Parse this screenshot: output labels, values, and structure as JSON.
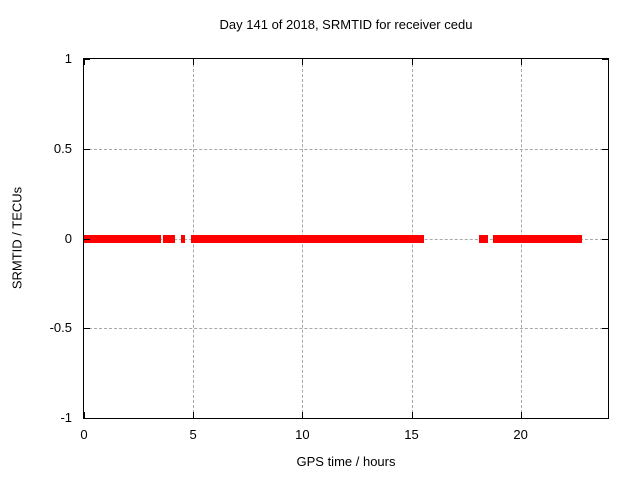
{
  "chart_data": {
    "type": "line",
    "title": "Day 141 of 2018, SRMTID for receiver cedu",
    "xlabel": "GPS time / hours",
    "ylabel": "SRMTID / TECUs",
    "xlim": [
      0,
      24
    ],
    "ylim": [
      -1,
      1
    ],
    "xticks": [
      0,
      5,
      10,
      15,
      20
    ],
    "yticks": [
      1,
      0.5,
      0,
      -0.5,
      -1
    ],
    "grid": true,
    "legend": "none",
    "colors": {
      "data": "#ff0000",
      "grid": "#a8a8a8",
      "border": "#000000",
      "text": "#000000",
      "background": "#ffffff"
    },
    "series": [
      {
        "name": "SRMTID",
        "color": "#ff0000",
        "y_value": 0,
        "segments_hours": [
          [
            0.0,
            3.51
          ],
          [
            3.63,
            4.15
          ],
          [
            4.44,
            4.62
          ],
          [
            4.91,
            15.56
          ],
          [
            18.07,
            18.52
          ],
          [
            18.73,
            22.83
          ]
        ]
      }
    ]
  }
}
